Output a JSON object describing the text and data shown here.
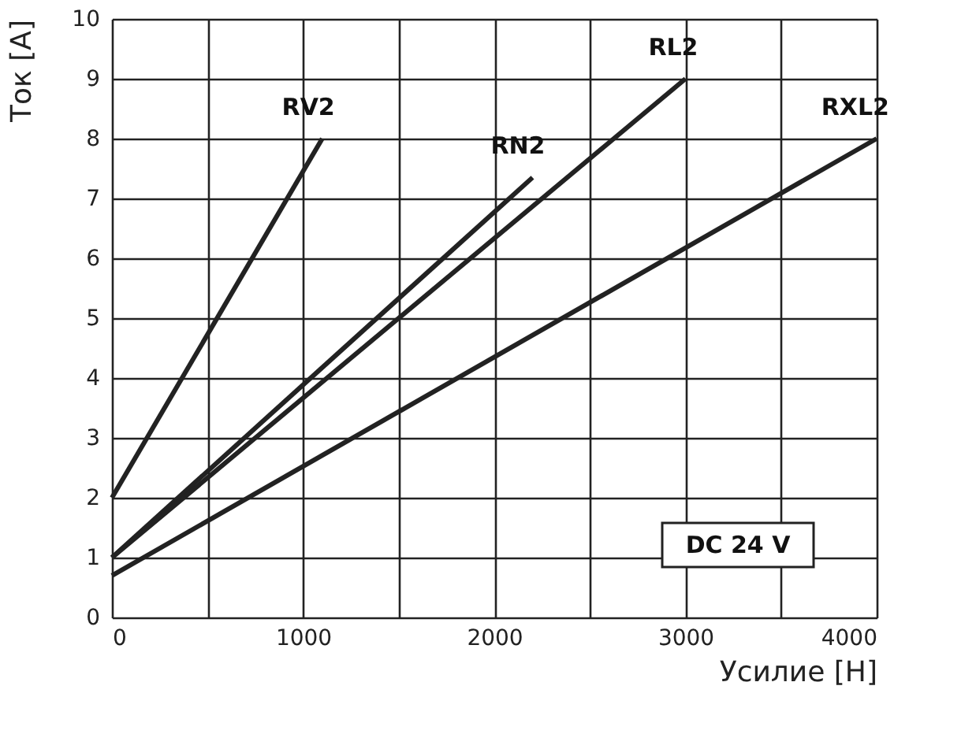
{
  "chart_data": {
    "type": "line",
    "xlabel": "Усилие [Н]",
    "ylabel": "Ток [А]",
    "xlim": [
      0,
      4000
    ],
    "ylim": [
      0,
      10
    ],
    "xticks": [
      0,
      {
        "value": 500,
        "label": null
      },
      1000,
      {
        "value": 1500,
        "label": null
      },
      2000,
      {
        "value": 2500,
        "label": null
      },
      3000,
      {
        "value": 3500,
        "label": null
      },
      4000
    ],
    "yticks": [
      0,
      1,
      2,
      3,
      4,
      5,
      6,
      7,
      8,
      9,
      10
    ],
    "grid": true,
    "marker": "none",
    "line_style": "solid",
    "series": [
      {
        "name": "RV2",
        "color": "#222222",
        "x": [
          0,
          1100
        ],
        "values": [
          2,
          8
        ]
      },
      {
        "name": "RN2",
        "color": "#222222",
        "x": [
          0,
          2200
        ],
        "values": [
          1,
          7.35
        ]
      },
      {
        "name": "RL2",
        "color": "#222222",
        "x": [
          0,
          3000
        ],
        "values": [
          1,
          9
        ]
      },
      {
        "name": "RXL2",
        "color": "#222222",
        "x": [
          0,
          4000
        ],
        "values": [
          0.7,
          8
        ]
      }
    ],
    "annotations": [
      "DC 24 V"
    ]
  }
}
